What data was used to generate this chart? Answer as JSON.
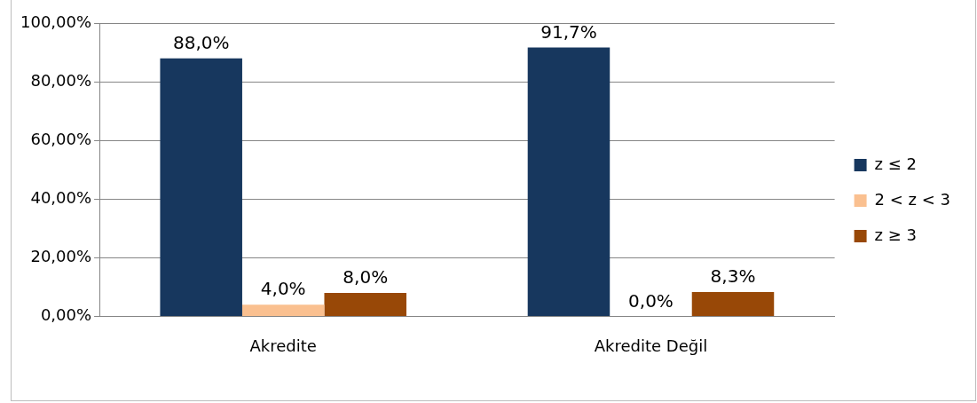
{
  "chart_data": {
    "type": "bar",
    "categories": [
      "Akredite",
      "Akredite Değil"
    ],
    "series": [
      {
        "name": "z ≤ 2",
        "color": "#17375e",
        "values": [
          88.0,
          91.7
        ],
        "value_labels": [
          "88,0%",
          "91,7%"
        ]
      },
      {
        "name": "2 < z < 3",
        "color": "#fac090",
        "values": [
          4.0,
          0.0
        ],
        "value_labels": [
          "4,0%",
          "0,0%"
        ]
      },
      {
        "name": "z ≥ 3",
        "color": "#984807",
        "values": [
          8.0,
          8.3
        ],
        "value_labels": [
          "8,0%",
          "8,3%"
        ]
      }
    ],
    "ylim": [
      0,
      100
    ],
    "yticks": [
      {
        "value": 0,
        "label": "0,00%"
      },
      {
        "value": 20,
        "label": "20,00%"
      },
      {
        "value": 40,
        "label": "40,00%"
      },
      {
        "value": 60,
        "label": "60,00%"
      },
      {
        "value": 80,
        "label": "80,00%"
      },
      {
        "value": 100,
        "label": "100,00%"
      }
    ],
    "grid": "y",
    "legend": "right"
  }
}
